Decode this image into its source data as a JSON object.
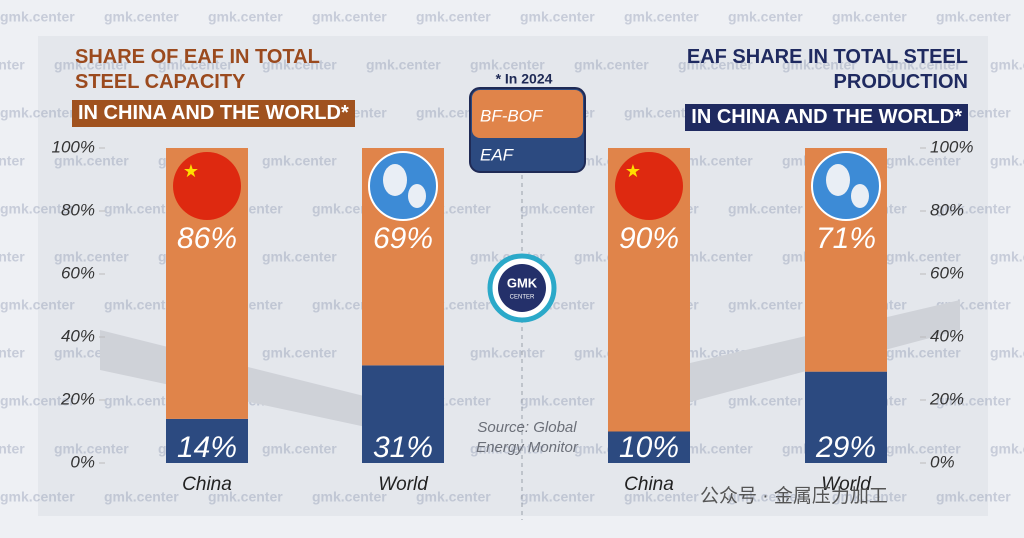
{
  "watermark": "gmk.center",
  "note": "* In 2024",
  "source": "Source: Global Energy Monitor",
  "logo": {
    "text": "GMK",
    "subtext": "CENTER"
  },
  "footer": "公众号 · 金属压力加工",
  "chart_data": [
    {
      "type": "stacked_bar",
      "title": "SHARE OF EAF IN TOTAL STEEL CAPACITY",
      "subtitle": "IN CHINA AND THE WORLD*",
      "categories": [
        "China",
        "World"
      ],
      "series": [
        {
          "name": "BF-BOF",
          "color": "#e0844a",
          "values": [
            86,
            69
          ],
          "value_labels": [
            "86%",
            "69%"
          ]
        },
        {
          "name": "EAF",
          "color": "#2c4a80",
          "values": [
            14,
            31
          ],
          "value_labels": [
            "14%",
            "31%"
          ]
        }
      ],
      "ylim": [
        0,
        100
      ],
      "yticks": [
        {
          "value": 0,
          "label": "0%"
        },
        {
          "value": 20,
          "label": "20%"
        },
        {
          "value": 40,
          "label": "40%"
        },
        {
          "value": 60,
          "label": "60%"
        },
        {
          "value": 80,
          "label": "80%"
        },
        {
          "value": 100,
          "label": "100%"
        }
      ]
    },
    {
      "type": "stacked_bar",
      "title": "EAF SHARE IN TOTAL STEEL PRODUCTION",
      "subtitle": "IN CHINA AND THE WORLD*",
      "categories": [
        "China",
        "World"
      ],
      "series": [
        {
          "color": "#e0844a",
          "values": [
            90,
            71
          ],
          "value_labels": [
            "90%",
            "71%"
          ]
        },
        {
          "color": "#2c4a80",
          "values": [
            10,
            29
          ],
          "value_labels": [
            "10%",
            "29%"
          ]
        }
      ],
      "ylim": [
        0,
        100
      ],
      "yticks": [
        {
          "value": 0,
          "label": "0%"
        },
        {
          "value": 20,
          "label": "20%"
        },
        {
          "value": 40,
          "label": "40%"
        },
        {
          "value": 60,
          "label": "60%"
        },
        {
          "value": 80,
          "label": "80%"
        },
        {
          "value": 100,
          "label": "100%"
        }
      ]
    }
  ]
}
